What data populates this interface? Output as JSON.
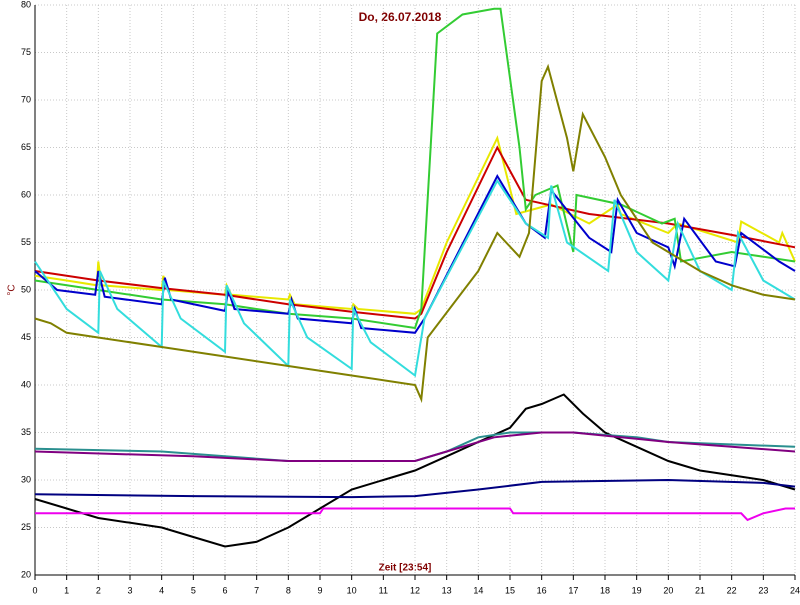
{
  "chart_data": {
    "type": "line",
    "title": "Do, 26.07.2018",
    "xlabel": "Zeit [23:54]",
    "ylabel": "°C",
    "xlim": [
      0,
      24
    ],
    "ylim": [
      20,
      80
    ],
    "xticks": [
      0,
      1,
      2,
      3,
      4,
      5,
      6,
      7,
      8,
      9,
      10,
      11,
      12,
      13,
      14,
      15,
      16,
      17,
      18,
      19,
      20,
      21,
      22,
      23,
      24
    ],
    "yticks": [
      20,
      25,
      30,
      35,
      40,
      45,
      50,
      55,
      60,
      65,
      70,
      75,
      80
    ],
    "grid": true,
    "series": [
      {
        "color": "#e8e800",
        "x": [
          0,
          1,
          1.95,
          2,
          2.1,
          4,
          4.05,
          4.2,
          6,
          6.05,
          6.2,
          8,
          8.05,
          8.2,
          10,
          10.05,
          10.2,
          12,
          12.2,
          13,
          14.6,
          15.2,
          16.3,
          17.5,
          18.4,
          18.5,
          20,
          20.3,
          22.2,
          22.3,
          23.5,
          23.6,
          24
        ],
        "values": [
          51.5,
          51,
          50.5,
          53,
          50.5,
          50,
          51.5,
          50,
          49.5,
          50.5,
          49.5,
          49,
          49.5,
          48.5,
          48,
          48.5,
          48,
          47.5,
          48,
          55,
          66,
          58,
          59,
          57,
          59,
          58,
          56,
          57,
          55,
          57.2,
          55,
          56,
          53
        ]
      },
      {
        "color": "#cc0000",
        "x": [
          0,
          2,
          4,
          6,
          8,
          10,
          12,
          12.2,
          13,
          14.6,
          15.5,
          17.5,
          20,
          22,
          24
        ],
        "values": [
          52,
          51,
          50.2,
          49.5,
          48.5,
          47.7,
          47,
          47.5,
          54,
          65,
          59.5,
          58,
          57,
          55.8,
          54.5
        ]
      },
      {
        "color": "#33cc33",
        "x": [
          0,
          1,
          2,
          4,
          6,
          8,
          10,
          12,
          12.2,
          12.7,
          13.5,
          14.5,
          14.7,
          15.3,
          15.5,
          15.8,
          16.5,
          17,
          17.1,
          18.5,
          19.8,
          20.2,
          20.4,
          22,
          24
        ],
        "values": [
          51,
          50.5,
          50,
          49,
          48.5,
          47.5,
          47,
          46,
          48,
          77,
          79,
          79.6,
          79.6,
          65,
          58.5,
          60,
          61,
          54,
          60,
          59,
          57,
          57.5,
          53,
          54,
          53
        ]
      },
      {
        "color": "#0000cc",
        "x": [
          0,
          0.7,
          1.9,
          2,
          2.2,
          4,
          4.1,
          4.3,
          6,
          6.1,
          6.3,
          8,
          8.1,
          8.3,
          10,
          10.1,
          10.3,
          12,
          12.3,
          14.6,
          15.5,
          16.1,
          16.3,
          17.5,
          18.2,
          18.4,
          19,
          20,
          20.2,
          20.5,
          21.5,
          22.1,
          22.3,
          23.5,
          24
        ],
        "values": [
          52,
          50,
          49.5,
          52,
          49.3,
          48.5,
          51.3,
          49,
          47.8,
          50,
          48,
          47.5,
          49,
          47,
          46.5,
          48,
          46,
          45.5,
          47,
          62,
          57,
          55.5,
          60.5,
          55.5,
          54,
          59.5,
          56,
          54.5,
          52.5,
          57.5,
          53,
          52.5,
          56,
          53,
          52
        ]
      },
      {
        "color": "#33dddd",
        "x": [
          0,
          1,
          2,
          2.05,
          2.6,
          4,
          4.05,
          4.6,
          6,
          6.05,
          6.6,
          8,
          8.05,
          8.6,
          10,
          10.05,
          10.6,
          12,
          12.3,
          14.6,
          15.5,
          16.2,
          16.3,
          16.8,
          18.1,
          18.3,
          19,
          20,
          20.3,
          21,
          22,
          22.2,
          23,
          24
        ],
        "values": [
          53,
          48,
          45.5,
          52,
          48,
          44,
          51,
          47,
          43.5,
          50.5,
          46.5,
          42,
          49,
          45,
          41.7,
          48,
          44.5,
          41,
          47,
          61.5,
          57,
          55.5,
          61,
          55,
          52,
          59.5,
          54,
          51,
          57,
          52,
          50,
          56,
          51,
          49
        ]
      },
      {
        "color": "#808000",
        "x": [
          0,
          0.5,
          1,
          4,
          6,
          8,
          10,
          12,
          12.2,
          12.4,
          14,
          14.6,
          15.3,
          15.6,
          16,
          16.2,
          16.8,
          17,
          17.3,
          18,
          18.5,
          19.5,
          20,
          21,
          22,
          23,
          24
        ],
        "values": [
          47,
          46.5,
          45.5,
          44,
          43,
          42,
          41,
          40,
          38.5,
          45,
          52,
          56,
          53.5,
          56,
          72,
          73.5,
          66,
          62.5,
          68.5,
          64,
          60,
          55,
          54,
          52,
          50.5,
          49.5,
          49
        ]
      },
      {
        "color": "#000000",
        "x": [
          0,
          1,
          2,
          4,
          5,
          6,
          7,
          8,
          9,
          10,
          11,
          12,
          13,
          14,
          15,
          15.5,
          16,
          16.7,
          17.3,
          18,
          19,
          20,
          21,
          22,
          23,
          24
        ],
        "values": [
          28,
          27,
          26,
          25,
          24,
          23,
          23.5,
          25,
          27,
          29,
          30,
          31,
          32.5,
          34,
          35.5,
          37.5,
          38,
          39,
          37,
          35,
          33.5,
          32,
          31,
          30.5,
          30,
          29
        ]
      },
      {
        "color": "#2a8f8f",
        "x": [
          0,
          4,
          6,
          8,
          12,
          13,
          14,
          15,
          17,
          19,
          20,
          24
        ],
        "values": [
          33.3,
          33,
          32.5,
          32,
          32,
          33,
          34.5,
          35,
          35,
          34.5,
          34,
          33.5
        ]
      },
      {
        "color": "#800080",
        "x": [
          0,
          5,
          8,
          12,
          13,
          14.5,
          16,
          17,
          20,
          22,
          24
        ],
        "values": [
          33,
          32.5,
          32,
          32,
          33,
          34.5,
          35,
          35,
          34,
          33.5,
          33
        ]
      },
      {
        "color": "#000080",
        "x": [
          0,
          5,
          10,
          12,
          14,
          16,
          20,
          23,
          24
        ],
        "values": [
          28.5,
          28.3,
          28.2,
          28.3,
          29,
          29.8,
          30,
          29.7,
          29.3
        ]
      },
      {
        "color": "#ee00ee",
        "x": [
          0,
          9,
          9.1,
          15,
          15.1,
          22.3,
          22.5,
          23,
          23.7,
          24
        ],
        "values": [
          26.5,
          26.5,
          27,
          27,
          26.5,
          26.5,
          25.8,
          26.5,
          27,
          27
        ]
      }
    ]
  }
}
